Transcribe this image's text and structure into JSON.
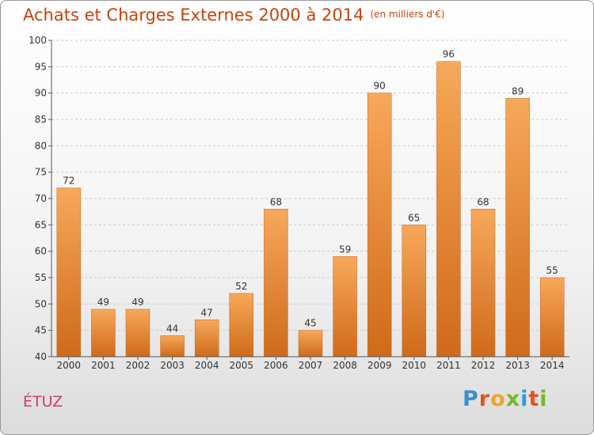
{
  "title": "Achats et Charges Externes 2000 à 2014",
  "unit": "(en milliers d'€)",
  "commune": "ÉTUZ",
  "logo": {
    "letters": [
      "P",
      "r",
      "o",
      "x",
      "i",
      "t",
      "i"
    ],
    "colors": [
      "#3a8fd0",
      "#e4531d",
      "#f0a32a",
      "#77b82a",
      "#2f9bd8",
      "#e4531d",
      "#77b82a"
    ]
  },
  "chart_data": {
    "type": "bar",
    "categories": [
      "2000",
      "2001",
      "2002",
      "2003",
      "2004",
      "2005",
      "2006",
      "2007",
      "2008",
      "2009",
      "2010",
      "2011",
      "2012",
      "2013",
      "2014"
    ],
    "values": [
      72,
      49,
      49,
      44,
      47,
      52,
      68,
      45,
      59,
      90,
      65,
      96,
      68,
      89,
      55
    ],
    "ylim": [
      40,
      100
    ],
    "yticks": [
      40,
      45,
      50,
      55,
      60,
      65,
      70,
      75,
      80,
      85,
      90,
      95,
      100
    ],
    "grid": true,
    "bar_color_top": "#f7a85a",
    "bar_color_bottom": "#cf6a1a"
  }
}
